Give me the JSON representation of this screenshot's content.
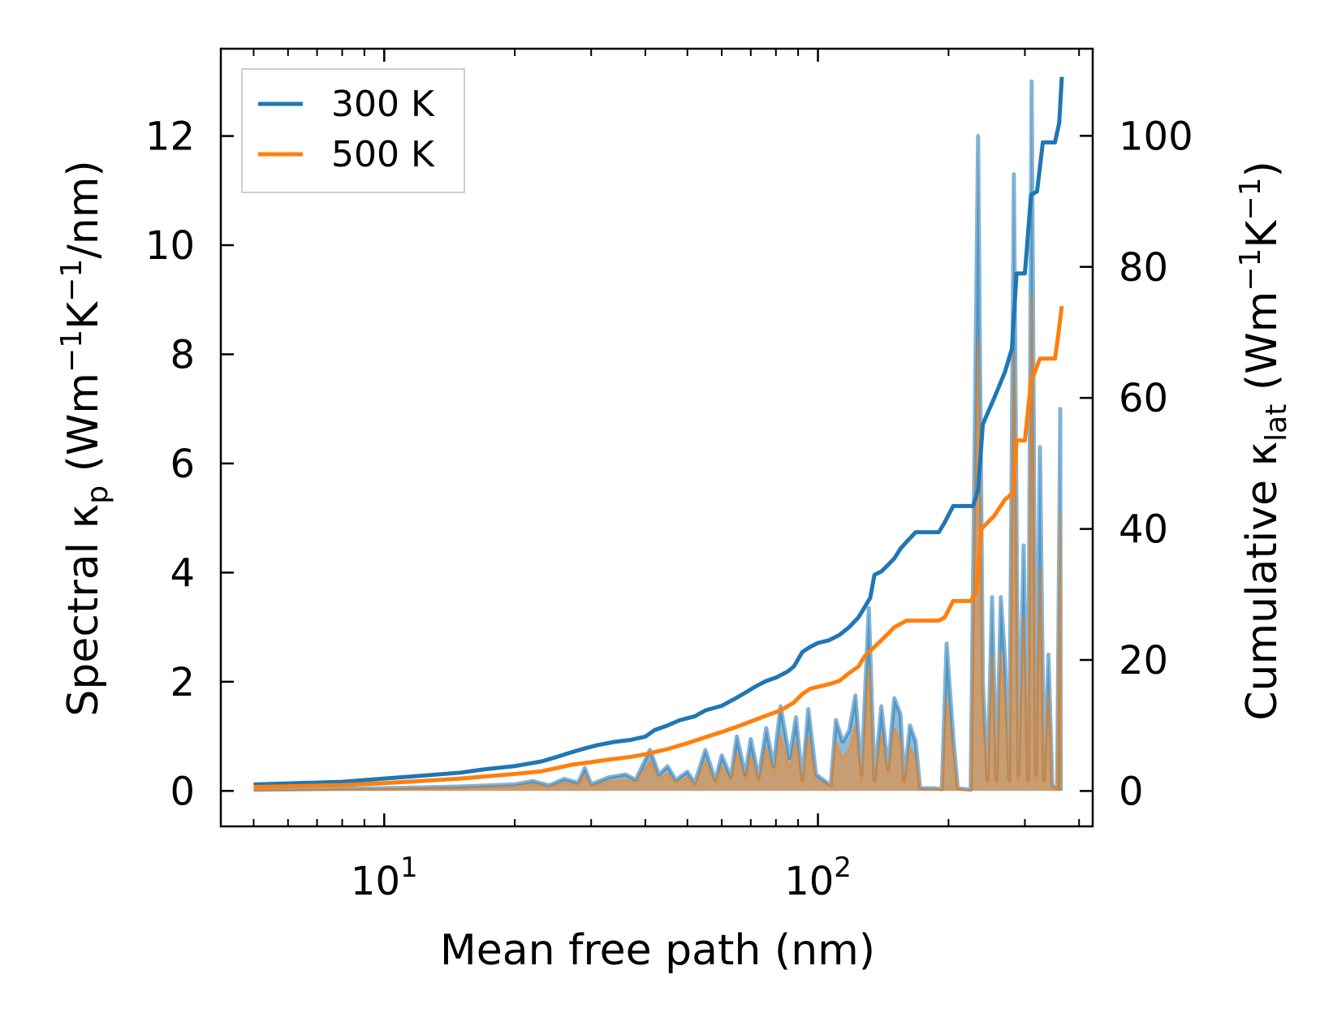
{
  "chart_data": {
    "type": "line",
    "xscale": "log",
    "xlabel": "Mean free path (nm)",
    "ylabel_left": {
      "prefix": "Spectral κ",
      "sub": "p",
      "units_pre": " (Wm",
      "exp1": "−1",
      "units_mid": "K",
      "exp2": "−1",
      "units_post": "/nm)"
    },
    "ylabel_right": {
      "prefix": "Cumulative κ",
      "sub": "lat",
      "units_pre": " (Wm",
      "exp1": "−1",
      "units_mid": "K",
      "exp2": "−1",
      "units_post": ")"
    },
    "xlim": [
      4.2,
      430
    ],
    "ylim_left": [
      -0.65,
      13.6
    ],
    "ylim_right": [
      -5.4,
      113.3
    ],
    "x_ticks": [
      {
        "value": 10,
        "base": "10",
        "exp": "1"
      },
      {
        "value": 100,
        "base": "10",
        "exp": "2"
      }
    ],
    "y_ticks_left": [
      0,
      2,
      4,
      6,
      8,
      10,
      12
    ],
    "y_ticks_left_labels": [
      "0",
      "2",
      "4",
      "6",
      "8",
      "10",
      "12"
    ],
    "y_ticks_right": [
      0,
      20,
      40,
      60,
      80,
      100
    ],
    "y_ticks_right_labels": [
      "0",
      "20",
      "40",
      "60",
      "80",
      "100"
    ],
    "legend": {
      "position": "top-left",
      "entries": [
        "300 K",
        "500 K"
      ]
    },
    "colors": {
      "300 K": "#1f77b4",
      "500 K": "#ff7f0e"
    },
    "spectral_300K": [
      [
        5,
        0.02
      ],
      [
        10,
        0.05
      ],
      [
        15,
        0.08
      ],
      [
        20,
        0.12
      ],
      [
        22,
        0.18
      ],
      [
        24,
        0.1
      ],
      [
        26,
        0.22
      ],
      [
        28,
        0.15
      ],
      [
        29,
        0.42
      ],
      [
        30,
        0.12
      ],
      [
        33,
        0.25
      ],
      [
        36,
        0.3
      ],
      [
        38,
        0.2
      ],
      [
        41,
        0.75
      ],
      [
        43,
        0.3
      ],
      [
        45,
        0.45
      ],
      [
        47,
        0.2
      ],
      [
        50,
        0.35
      ],
      [
        52,
        0.15
      ],
      [
        55,
        0.75
      ],
      [
        58,
        0.2
      ],
      [
        60,
        0.65
      ],
      [
        63,
        0.25
      ],
      [
        65,
        1.0
      ],
      [
        68,
        0.3
      ],
      [
        70,
        0.95
      ],
      [
        73,
        0.25
      ],
      [
        76,
        1.15
      ],
      [
        79,
        0.45
      ],
      [
        82,
        1.55
      ],
      [
        86,
        0.6
      ],
      [
        89,
        1.35
      ],
      [
        92,
        0.2
      ],
      [
        95,
        1.5
      ],
      [
        99,
        0.3
      ],
      [
        103,
        0.2
      ],
      [
        107,
        0.1
      ],
      [
        110,
        1.3
      ],
      [
        114,
        0.9
      ],
      [
        118,
        1.1
      ],
      [
        122,
        1.75
      ],
      [
        126,
        0.3
      ],
      [
        131,
        3.35
      ],
      [
        135,
        0.2
      ],
      [
        140,
        1.55
      ],
      [
        145,
        0.4
      ],
      [
        150,
        1.7
      ],
      [
        155,
        1.4
      ],
      [
        158,
        0.2
      ],
      [
        163,
        1.2
      ],
      [
        168,
        0.9
      ],
      [
        172,
        0.05
      ],
      [
        185,
        0.05
      ],
      [
        193,
        0.03
      ],
      [
        198,
        2.7
      ],
      [
        205,
        1.0
      ],
      [
        210,
        0.05
      ],
      [
        225,
        0.02
      ],
      [
        234,
        12.0
      ],
      [
        240,
        2.0
      ],
      [
        246,
        0.2
      ],
      [
        252,
        3.55
      ],
      [
        258,
        0.2
      ],
      [
        264,
        3.55
      ],
      [
        270,
        2.4
      ],
      [
        276,
        0.2
      ],
      [
        283,
        11.3
      ],
      [
        290,
        0.3
      ],
      [
        298,
        4.5
      ],
      [
        305,
        0.2
      ],
      [
        311,
        13.0
      ],
      [
        318,
        0.3
      ],
      [
        325,
        6.3
      ],
      [
        332,
        0.2
      ],
      [
        340,
        2.5
      ],
      [
        347,
        0.1
      ],
      [
        356,
        0.05
      ],
      [
        362,
        7.0
      ],
      [
        363,
        0.0
      ]
    ],
    "spectral_500K": [
      [
        5,
        0.01
      ],
      [
        10,
        0.03
      ],
      [
        15,
        0.05
      ],
      [
        20,
        0.08
      ],
      [
        22,
        0.12
      ],
      [
        24,
        0.07
      ],
      [
        26,
        0.15
      ],
      [
        28,
        0.1
      ],
      [
        29,
        0.3
      ],
      [
        30,
        0.08
      ],
      [
        33,
        0.18
      ],
      [
        36,
        0.2
      ],
      [
        38,
        0.15
      ],
      [
        41,
        0.55
      ],
      [
        43,
        0.22
      ],
      [
        45,
        0.32
      ],
      [
        47,
        0.15
      ],
      [
        50,
        0.25
      ],
      [
        52,
        0.1
      ],
      [
        55,
        0.55
      ],
      [
        58,
        0.15
      ],
      [
        60,
        0.45
      ],
      [
        63,
        0.18
      ],
      [
        65,
        0.7
      ],
      [
        68,
        0.2
      ],
      [
        70,
        0.65
      ],
      [
        73,
        0.18
      ],
      [
        76,
        0.8
      ],
      [
        79,
        0.3
      ],
      [
        82,
        1.05
      ],
      [
        86,
        0.4
      ],
      [
        89,
        0.9
      ],
      [
        92,
        0.15
      ],
      [
        95,
        1.0
      ],
      [
        99,
        0.2
      ],
      [
        103,
        0.15
      ],
      [
        107,
        0.08
      ],
      [
        110,
        0.9
      ],
      [
        114,
        0.6
      ],
      [
        118,
        0.75
      ],
      [
        122,
        1.2
      ],
      [
        126,
        0.2
      ],
      [
        131,
        2.3
      ],
      [
        135,
        0.15
      ],
      [
        140,
        1.05
      ],
      [
        145,
        0.3
      ],
      [
        150,
        1.15
      ],
      [
        155,
        0.95
      ],
      [
        158,
        0.15
      ],
      [
        163,
        0.8
      ],
      [
        168,
        0.6
      ],
      [
        172,
        0.03
      ],
      [
        185,
        0.03
      ],
      [
        193,
        0.02
      ],
      [
        198,
        1.7
      ],
      [
        205,
        0.7
      ],
      [
        210,
        0.03
      ],
      [
        225,
        0.01
      ],
      [
        234,
        8.3
      ],
      [
        240,
        1.4
      ],
      [
        246,
        0.15
      ],
      [
        252,
        2.5
      ],
      [
        258,
        0.15
      ],
      [
        264,
        2.55
      ],
      [
        270,
        1.7
      ],
      [
        276,
        0.15
      ],
      [
        283,
        8.0
      ],
      [
        290,
        0.2
      ],
      [
        298,
        3.2
      ],
      [
        305,
        0.15
      ],
      [
        311,
        9.1
      ],
      [
        318,
        0.2
      ],
      [
        325,
        4.1
      ],
      [
        332,
        0.15
      ],
      [
        340,
        1.8
      ],
      [
        347,
        0.08
      ],
      [
        356,
        0.03
      ],
      [
        362,
        5.1
      ],
      [
        363,
        0.0
      ]
    ],
    "cumulative_300K": [
      [
        5,
        1.0
      ],
      [
        8,
        1.4
      ],
      [
        10,
        1.9
      ],
      [
        12,
        2.3
      ],
      [
        15,
        2.8
      ],
      [
        17,
        3.3
      ],
      [
        20,
        3.8
      ],
      [
        23,
        4.5
      ],
      [
        25,
        5.2
      ],
      [
        27,
        5.9
      ],
      [
        29,
        6.5
      ],
      [
        31,
        7.0
      ],
      [
        34,
        7.5
      ],
      [
        37,
        7.8
      ],
      [
        40,
        8.3
      ],
      [
        42,
        9.3
      ],
      [
        45,
        10.0
      ],
      [
        48,
        10.8
      ],
      [
        52,
        11.4
      ],
      [
        55,
        12.3
      ],
      [
        60,
        13.0
      ],
      [
        64,
        14.0
      ],
      [
        68,
        15.0
      ],
      [
        72,
        16.0
      ],
      [
        76,
        16.8
      ],
      [
        80,
        17.3
      ],
      [
        85,
        18.2
      ],
      [
        88,
        19.0
      ],
      [
        92,
        21.2
      ],
      [
        96,
        22.0
      ],
      [
        100,
        22.6
      ],
      [
        106,
        23.0
      ],
      [
        112,
        23.8
      ],
      [
        118,
        25.0
      ],
      [
        124,
        26.5
      ],
      [
        128,
        28.0
      ],
      [
        132,
        29.5
      ],
      [
        135,
        33.0
      ],
      [
        140,
        33.5
      ],
      [
        145,
        34.5
      ],
      [
        150,
        35.5
      ],
      [
        155,
        37.0
      ],
      [
        160,
        38.0
      ],
      [
        168,
        39.5
      ],
      [
        175,
        39.5
      ],
      [
        190,
        39.5
      ],
      [
        196,
        41.0
      ],
      [
        205,
        43.5
      ],
      [
        228,
        43.5
      ],
      [
        234,
        46.0
      ],
      [
        240,
        56.0
      ],
      [
        255,
        60.0
      ],
      [
        270,
        64.0
      ],
      [
        280,
        67.5
      ],
      [
        287,
        79.0
      ],
      [
        300,
        79.0
      ],
      [
        310,
        91.0
      ],
      [
        320,
        91.5
      ],
      [
        330,
        99.0
      ],
      [
        352,
        99.0
      ],
      [
        360,
        102.0
      ],
      [
        365,
        109.0
      ]
    ],
    "cumulative_500K": [
      [
        5,
        0.6
      ],
      [
        8,
        0.9
      ],
      [
        10,
        1.2
      ],
      [
        12,
        1.5
      ],
      [
        15,
        1.9
      ],
      [
        17,
        2.2
      ],
      [
        20,
        2.6
      ],
      [
        23,
        3.0
      ],
      [
        25,
        3.5
      ],
      [
        27,
        4.0
      ],
      [
        30,
        4.4
      ],
      [
        33,
        4.8
      ],
      [
        37,
        5.2
      ],
      [
        40,
        5.6
      ],
      [
        45,
        6.4
      ],
      [
        50,
        7.3
      ],
      [
        55,
        8.2
      ],
      [
        60,
        9.0
      ],
      [
        65,
        9.8
      ],
      [
        70,
        10.6
      ],
      [
        76,
        11.5
      ],
      [
        82,
        12.3
      ],
      [
        88,
        13.5
      ],
      [
        92,
        14.8
      ],
      [
        96,
        15.6
      ],
      [
        100,
        15.9
      ],
      [
        106,
        16.3
      ],
      [
        112,
        16.8
      ],
      [
        118,
        18.0
      ],
      [
        124,
        19.0
      ],
      [
        128,
        20.5
      ],
      [
        135,
        22.0
      ],
      [
        140,
        23.0
      ],
      [
        145,
        24.0
      ],
      [
        150,
        25.0
      ],
      [
        160,
        26.0
      ],
      [
        168,
        26.0
      ],
      [
        190,
        26.0
      ],
      [
        196,
        26.5
      ],
      [
        205,
        29.0
      ],
      [
        225,
        29.0
      ],
      [
        232,
        30.5
      ],
      [
        238,
        40.0
      ],
      [
        255,
        42.0
      ],
      [
        270,
        44.5
      ],
      [
        282,
        45.5
      ],
      [
        287,
        53.5
      ],
      [
        300,
        53.5
      ],
      [
        310,
        62.5
      ],
      [
        325,
        66.0
      ],
      [
        352,
        66.0
      ],
      [
        358,
        69.5
      ],
      [
        365,
        74.0
      ]
    ]
  }
}
